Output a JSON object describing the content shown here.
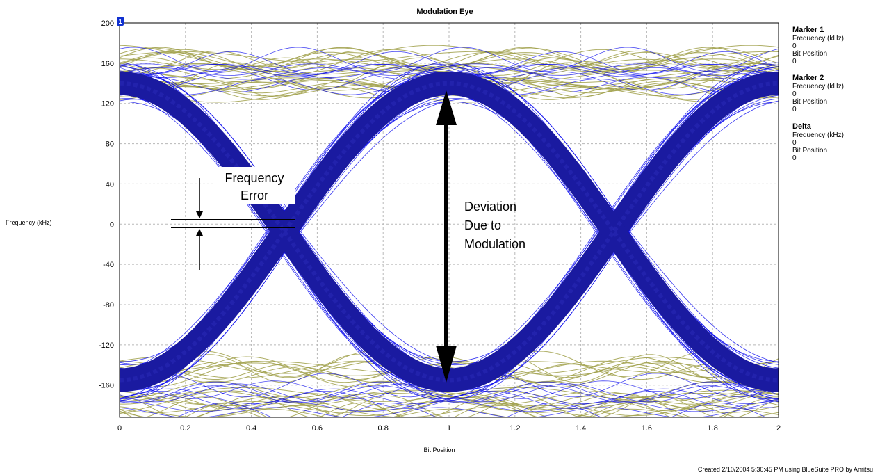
{
  "chart_data": {
    "type": "line",
    "title": "Modulation Eye",
    "xlabel": "Bit Position",
    "ylabel": "Frequency (kHz)",
    "xlim": [
      0,
      2
    ],
    "ylim": [
      -200,
      200
    ],
    "x_ticks": [
      "0",
      "0.2",
      "0.4",
      "0.6",
      "0.8",
      "1",
      "1.2",
      "1.4",
      "1.6",
      "1.8",
      "2"
    ],
    "y_ticks": [
      "200",
      "160",
      "120",
      "80",
      "40",
      "0",
      "-40",
      "-80",
      "-120",
      "-160"
    ],
    "grid": true,
    "marker_badge": "1",
    "eye": {
      "upper_level_khz": 140,
      "lower_level_khz": -155,
      "crossing_positions": [
        0.5,
        1.5
      ],
      "crossing_level_khz": -8,
      "band_color": "#1a1aa0",
      "trace_colors": [
        "#0000ee",
        "#a0a04a"
      ]
    },
    "annotations": {
      "frequency_error": {
        "line1": "Frequency",
        "line2": "Error"
      },
      "deviation": {
        "line1": "Deviation",
        "line2": "Due to",
        "line3": "Modulation"
      }
    },
    "footer": "Created 2/10/2004 5:30:45 PM using BlueSuite PRO by Anritsu"
  },
  "markers": [
    {
      "title": "Marker 1",
      "freq_label": "Frequency (kHz)",
      "freq_value": "0",
      "pos_label": "Bit Position",
      "pos_value": "0"
    },
    {
      "title": "Marker 2",
      "freq_label": "Frequency (kHz)",
      "freq_value": "0",
      "pos_label": "Bit Position",
      "pos_value": "0"
    },
    {
      "title": "Delta",
      "freq_label": "Frequency (kHz)",
      "freq_value": "0",
      "pos_label": "Bit Position",
      "pos_value": "0"
    }
  ]
}
